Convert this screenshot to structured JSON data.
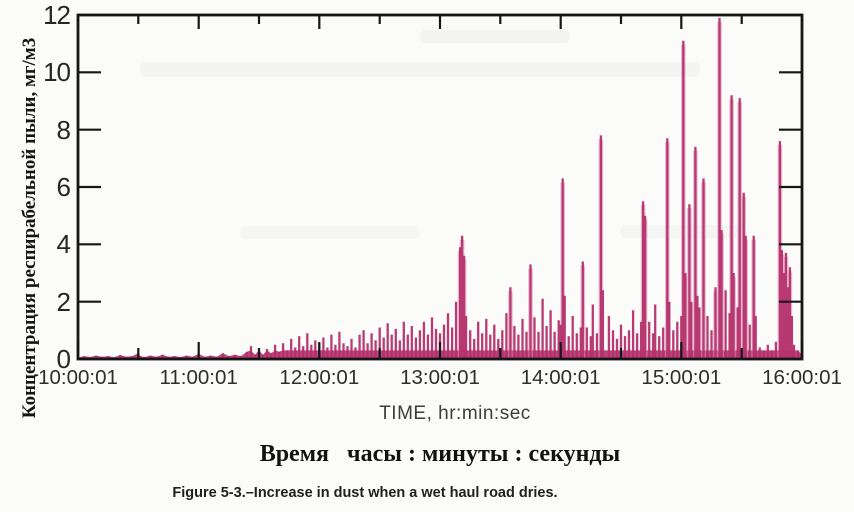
{
  "figure": {
    "caption": "Figure 5-3.–Increase in dust when a wet haul road dries."
  },
  "chart_data": {
    "type": "line",
    "subtype": "spike-time-series",
    "title": "",
    "xlabel": "TIME, hr:min:sec",
    "xlabel_ru": "Время   часы : минуты : секунды",
    "ylabel": "Концентрация респирабельной пыли, мг/м3",
    "x_tick_labels": [
      "10:00:01",
      "11:00:01",
      "12:00:01",
      "13:00:01",
      "14:00:01",
      "15:00:01",
      "16:00:01"
    ],
    "x_major_minutes": [
      0,
      60,
      120,
      180,
      240,
      300,
      360
    ],
    "x_minor_minutes": [
      30,
      90,
      150,
      210,
      270,
      330
    ],
    "y_ticks": [
      0,
      2,
      4,
      6,
      8,
      10,
      12
    ],
    "ylim": [
      0,
      12
    ],
    "xlim_minutes": [
      0,
      360
    ],
    "grid": false,
    "legend": "none",
    "colors": {
      "series": "#b5306c",
      "series_halo": "#d984ad",
      "axis": "#161616",
      "tick_label": "#2e2e2e"
    },
    "series": [
      {
        "name": "respirable dust concentration",
        "units": "мг/м3",
        "points": [
          [
            0,
            0.05
          ],
          [
            3,
            0.1
          ],
          [
            6,
            0.07
          ],
          [
            9,
            0.12
          ],
          [
            12,
            0.08
          ],
          [
            15,
            0.1
          ],
          [
            18,
            0.06
          ],
          [
            21,
            0.14
          ],
          [
            24,
            0.08
          ],
          [
            27,
            0.1
          ],
          [
            30,
            0.2
          ],
          [
            31,
            0.1
          ],
          [
            33,
            0.07
          ],
          [
            36,
            0.12
          ],
          [
            39,
            0.08
          ],
          [
            42,
            0.15
          ],
          [
            45,
            0.08
          ],
          [
            48,
            0.1
          ],
          [
            51,
            0.07
          ],
          [
            54,
            0.12
          ],
          [
            57,
            0.08
          ],
          [
            60,
            0.18
          ],
          [
            63,
            0.08
          ],
          [
            66,
            0.12
          ],
          [
            69,
            0.08
          ],
          [
            72,
            0.2
          ],
          [
            75,
            0.1
          ],
          [
            78,
            0.15
          ],
          [
            81,
            0.1
          ],
          [
            84,
            0.25
          ],
          [
            86,
            0.45
          ],
          [
            88,
            0.15
          ],
          [
            90,
            0.3
          ],
          [
            92,
            0.15
          ],
          [
            94,
            0.35
          ],
          [
            96,
            0.2
          ],
          [
            98,
            0.5
          ],
          [
            100,
            0.25
          ],
          [
            102,
            0.55
          ],
          [
            104,
            0.3
          ],
          [
            106,
            0.7
          ],
          [
            108,
            0.4
          ],
          [
            110,
            0.8
          ],
          [
            112,
            0.45
          ],
          [
            114,
            0.9
          ],
          [
            116,
            0.5
          ],
          [
            118,
            0.65
          ],
          [
            120,
            0.5
          ],
          [
            122,
            0.75
          ],
          [
            124,
            0.4
          ],
          [
            126,
            0.85
          ],
          [
            128,
            0.5
          ],
          [
            130,
            0.95
          ],
          [
            132,
            0.55
          ],
          [
            134,
            0.45
          ],
          [
            136,
            0.7
          ],
          [
            138,
            0.4
          ],
          [
            140,
            0.85
          ],
          [
            142,
            1.0
          ],
          [
            144,
            0.55
          ],
          [
            146,
            0.9
          ],
          [
            148,
            0.65
          ],
          [
            150,
            1.1
          ],
          [
            152,
            0.75
          ],
          [
            154,
            1.25
          ],
          [
            156,
            0.85
          ],
          [
            158,
            1.05
          ],
          [
            160,
            0.65
          ],
          [
            162,
            1.3
          ],
          [
            164,
            0.85
          ],
          [
            166,
            1.15
          ],
          [
            168,
            0.75
          ],
          [
            170,
            1.0
          ],
          [
            172,
            1.3
          ],
          [
            174,
            0.85
          ],
          [
            176,
            1.45
          ],
          [
            178,
            1.05
          ],
          [
            180,
            0.9
          ],
          [
            182,
            1.2
          ],
          [
            184,
            1.6
          ],
          [
            186,
            1.1
          ],
          [
            188,
            2.0
          ],
          [
            190,
            3.9
          ],
          [
            191,
            4.3
          ],
          [
            192,
            3.6
          ],
          [
            193,
            1.5
          ],
          [
            195,
            1.0
          ],
          [
            197,
            0.7
          ],
          [
            199,
            1.3
          ],
          [
            201,
            0.9
          ],
          [
            203,
            1.4
          ],
          [
            205,
            0.85
          ],
          [
            207,
            1.2
          ],
          [
            209,
            0.7
          ],
          [
            211,
            1.0
          ],
          [
            213,
            1.6
          ],
          [
            215,
            2.5
          ],
          [
            217,
            1.15
          ],
          [
            219,
            0.85
          ],
          [
            221,
            1.4
          ],
          [
            223,
            0.95
          ],
          [
            225,
            3.3
          ],
          [
            227,
            1.45
          ],
          [
            229,
            0.95
          ],
          [
            231,
            2.1
          ],
          [
            233,
            1.15
          ],
          [
            235,
            1.7
          ],
          [
            237,
            0.95
          ],
          [
            239,
            1.35
          ],
          [
            240,
            1.2
          ],
          [
            241,
            6.3
          ],
          [
            242,
            2.2
          ],
          [
            244,
            0.8
          ],
          [
            246,
            1.5
          ],
          [
            248,
            0.9
          ],
          [
            250,
            1.1
          ],
          [
            251,
            3.4
          ],
          [
            253,
            1.1
          ],
          [
            255,
            0.8
          ],
          [
            256,
            1.9
          ],
          [
            258,
            0.9
          ],
          [
            260,
            7.8
          ],
          [
            261,
            2.4
          ],
          [
            264,
            1.5
          ],
          [
            266,
            1.0
          ],
          [
            268,
            0.7
          ],
          [
            270,
            1.2
          ],
          [
            272,
            0.8
          ],
          [
            274,
            1.0
          ],
          [
            276,
            1.7
          ],
          [
            278,
            0.9
          ],
          [
            280,
            1.3
          ],
          [
            281,
            5.5
          ],
          [
            282,
            5.0
          ],
          [
            284,
            1.3
          ],
          [
            286,
            0.9
          ],
          [
            287,
            1.9
          ],
          [
            289,
            0.8
          ],
          [
            291,
            1.1
          ],
          [
            293,
            7.7
          ],
          [
            294,
            2.0
          ],
          [
            296,
            1.0
          ],
          [
            298,
            1.3
          ],
          [
            300,
            1.5
          ],
          [
            301,
            11.1
          ],
          [
            302,
            3.0
          ],
          [
            304,
            5.4
          ],
          [
            305,
            2.0
          ],
          [
            307,
            7.4
          ],
          [
            308,
            2.2
          ],
          [
            309,
            1.8
          ],
          [
            311,
            6.3
          ],
          [
            313,
            1.5
          ],
          [
            315,
            1.0
          ],
          [
            317,
            2.5
          ],
          [
            319,
            11.9
          ],
          [
            320,
            4.5
          ],
          [
            322,
            2.4
          ],
          [
            324,
            1.6
          ],
          [
            325,
            9.2
          ],
          [
            326,
            3.0
          ],
          [
            328,
            1.8
          ],
          [
            329,
            9.1
          ],
          [
            331,
            5.8
          ],
          [
            332,
            4.3
          ],
          [
            334,
            1.2
          ],
          [
            336,
            4.3
          ],
          [
            337,
            1.5
          ],
          [
            339,
            0.4
          ],
          [
            341,
            0.3
          ],
          [
            343,
            0.5
          ],
          [
            345,
            0.3
          ],
          [
            347,
            0.6
          ],
          [
            349,
            7.6
          ],
          [
            350,
            3.8
          ],
          [
            351,
            3.0
          ],
          [
            352,
            3.7
          ],
          [
            353,
            2.5
          ],
          [
            354,
            3.2
          ],
          [
            355,
            1.5
          ],
          [
            356,
            0.5
          ],
          [
            358,
            0.3
          ],
          [
            360,
            0.15
          ]
        ]
      }
    ]
  }
}
